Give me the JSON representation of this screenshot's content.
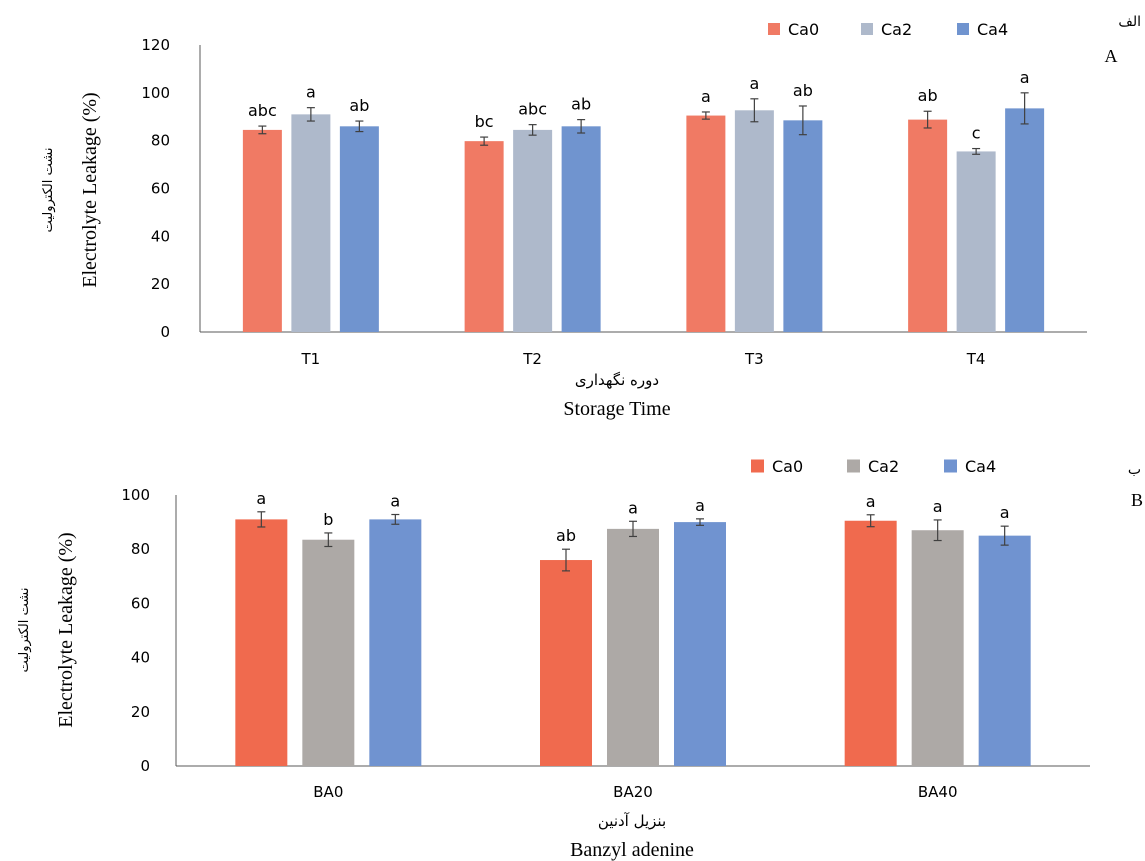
{
  "chart_data": [
    {
      "type": "bar",
      "panel_label": "A",
      "panel_label_fa": "الف",
      "categories": [
        "T1",
        "T2",
        "T3",
        "T4"
      ],
      "series": [
        {
          "name": "Ca0",
          "color": "#F07A64",
          "values": [
            84.5,
            79.8,
            90.5,
            88.8
          ],
          "errors": [
            1.6,
            1.7,
            1.5,
            3.5
          ],
          "labels": [
            "abc",
            "bc",
            "a",
            "ab"
          ]
        },
        {
          "name": "Ca2",
          "color": "#AEB9CB",
          "values": [
            91.0,
            84.5,
            92.7,
            75.5
          ],
          "errors": [
            2.8,
            2.2,
            4.8,
            1.2
          ],
          "labels": [
            "a",
            "abc",
            "a",
            "c"
          ]
        },
        {
          "name": "Ca4",
          "color": "#7094CF",
          "values": [
            86.0,
            86.0,
            88.5,
            93.5
          ],
          "errors": [
            2.2,
            2.8,
            6.0,
            6.5
          ],
          "labels": [
            "ab",
            "ab",
            "ab",
            "a"
          ]
        }
      ],
      "ylim": [
        0,
        120
      ],
      "yticks": [
        0,
        20,
        40,
        60,
        80,
        100,
        120
      ],
      "ylabel": "Electrolyte Leakage (%)",
      "ylabel_fa": "نشت الکترولیت",
      "xlabel": "Storage Time",
      "xlabel_fa": "دوره نگهداری",
      "legend_position": "top-right",
      "grid": false
    },
    {
      "type": "bar",
      "panel_label": "B",
      "panel_label_fa": "ب",
      "categories": [
        "BA0",
        "BA20",
        "BA40"
      ],
      "series": [
        {
          "name": "Ca0",
          "color": "#F06A4E",
          "values": [
            91.0,
            76.0,
            90.5
          ],
          "errors": [
            2.8,
            4.0,
            2.2
          ],
          "labels": [
            "a",
            "ab",
            "a"
          ]
        },
        {
          "name": "Ca2",
          "color": "#ADA9A6",
          "values": [
            83.5,
            87.5,
            87.0
          ],
          "errors": [
            2.5,
            2.8,
            3.8
          ],
          "labels": [
            "b",
            "a",
            "a"
          ]
        },
        {
          "name": "Ca4",
          "color": "#7093D0",
          "values": [
            91.0,
            90.0,
            85.0
          ],
          "errors": [
            1.8,
            1.2,
            3.5
          ],
          "labels": [
            "a",
            "a",
            "a"
          ]
        }
      ],
      "ylim": [
        0,
        100
      ],
      "yticks": [
        0,
        20,
        40,
        60,
        80,
        100
      ],
      "ylabel": "Electrolyte Leakage (%)",
      "ylabel_fa": "نشت الکترولیت",
      "xlabel": "Banzyl adenine",
      "xlabel_fa": "بنزیل آدنین",
      "legend_position": "top-right",
      "grid": false
    }
  ]
}
